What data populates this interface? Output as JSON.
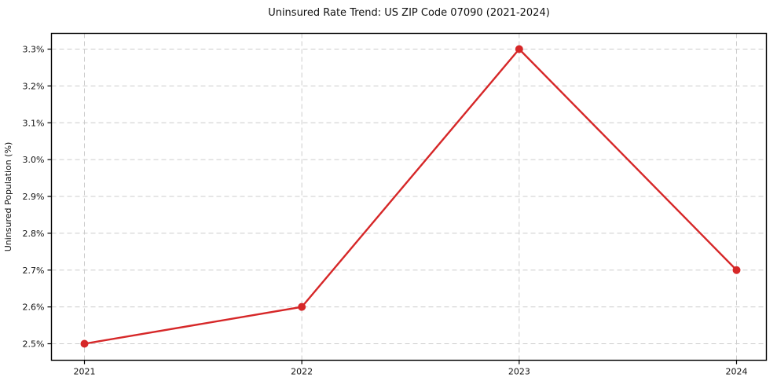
{
  "chart_data": {
    "type": "line",
    "title": "Uninsured Rate Trend: US ZIP Code 07090 (2021-2024)",
    "xlabel": "",
    "ylabel": "Uninsured Population (%)",
    "categories": [
      "2021",
      "2022",
      "2023",
      "2024"
    ],
    "series": [
      {
        "name": "Uninsured Population (%)",
        "values": [
          2.5,
          2.6,
          3.3,
          2.7
        ]
      }
    ],
    "ylim": [
      2.5,
      3.3
    ],
    "yticks": [
      2.5,
      2.6,
      2.7,
      2.8,
      2.9,
      3.0,
      3.1,
      3.2,
      3.3
    ],
    "ytick_labels": [
      "2.5%",
      "2.6%",
      "2.7%",
      "2.8%",
      "2.9%",
      "3.0%",
      "3.1%",
      "3.2%",
      "3.3%"
    ],
    "grid": true,
    "grid_style": "dashed",
    "legend_position": "none",
    "colors": {
      "line": "#d62728",
      "marker": "#d62728",
      "grid": "#cccccc",
      "spine": "#000000",
      "text": "#111111",
      "background": "#ffffff"
    }
  }
}
